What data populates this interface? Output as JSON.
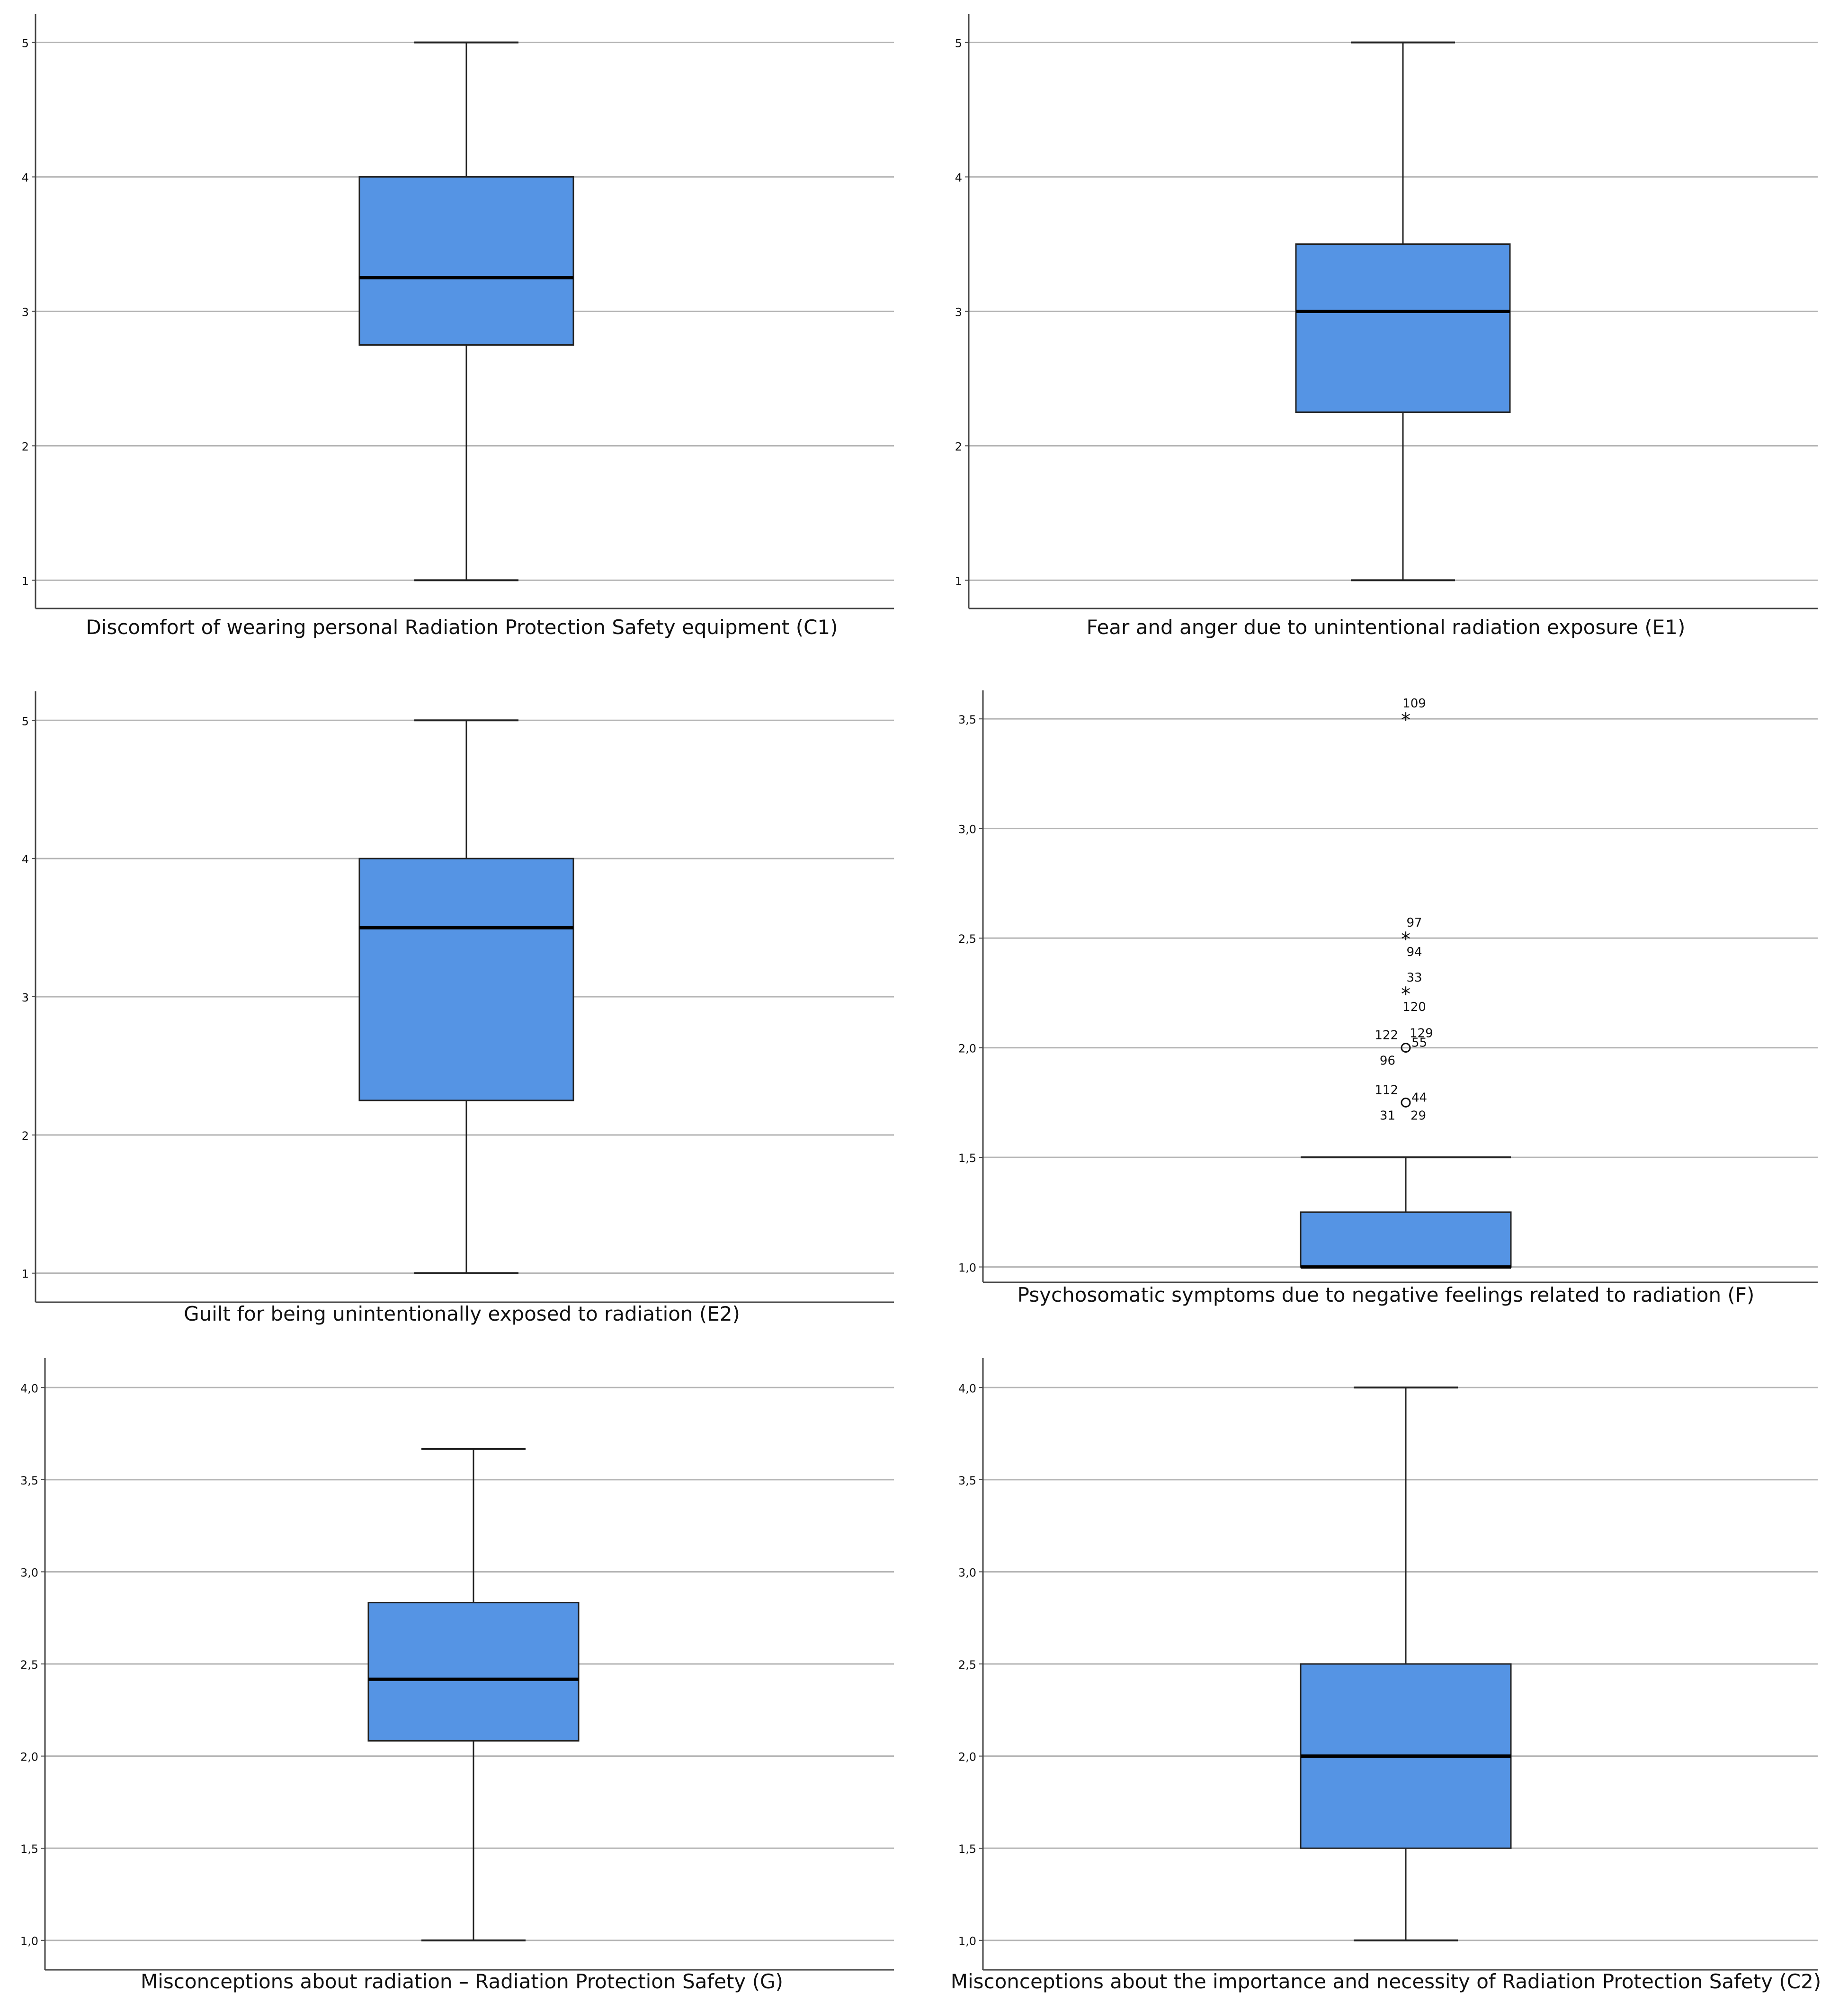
{
  "figure": {
    "colors": {
      "box_fill": "#5594e4",
      "box_edge": "#222222",
      "gridline": "#b4b4b4",
      "axis": "#444444",
      "median": "#000000",
      "text": "#111111"
    }
  },
  "chart_data": [
    {
      "type": "boxplot",
      "title": "",
      "xlabel": "Discomfort of wearing personal Radiation Protection Safety equipment (C1)",
      "ylabel": "",
      "ylim": [
        0.79,
        5.21
      ],
      "y_ticks": [
        1,
        2,
        3,
        4,
        5
      ],
      "y_tick_labels": [
        "1",
        "2",
        "3",
        "4",
        "5"
      ],
      "grid": true,
      "whisker_low": 1,
      "q1": 2.75,
      "median": 3.25,
      "q3": 4,
      "whisker_high": 5,
      "outliers": []
    },
    {
      "type": "boxplot",
      "title": "",
      "xlabel": "Fear and anger due to unintentional radiation exposure (E1)",
      "ylabel": "",
      "ylim": [
        0.79,
        5.21
      ],
      "y_ticks": [
        1,
        2,
        3,
        4,
        5
      ],
      "y_tick_labels": [
        "1",
        "2",
        "3",
        "4",
        "5"
      ],
      "grid": true,
      "whisker_low": 1,
      "q1": 2.25,
      "median": 3,
      "q3": 3.5,
      "whisker_high": 5,
      "outliers": []
    },
    {
      "type": "boxplot",
      "title": "",
      "xlabel": "Guilt for being unintentionally exposed to radiation (E2)",
      "ylabel": "",
      "ylim": [
        0.79,
        5.21
      ],
      "y_ticks": [
        1,
        2,
        3,
        4,
        5
      ],
      "y_tick_labels": [
        "1",
        "2",
        "3",
        "4",
        "5"
      ],
      "grid": true,
      "whisker_low": 1,
      "q1": 2.25,
      "median": 3.5,
      "q3": 4,
      "whisker_high": 5,
      "outliers": []
    },
    {
      "type": "boxplot",
      "title": "",
      "xlabel": "Psychosomatic symptoms due to negative feelings related to radiation (F)",
      "ylabel": "",
      "ylim": [
        0.93,
        3.63
      ],
      "y_ticks": [
        1.0,
        1.5,
        2.0,
        2.5,
        3.0,
        3.5
      ],
      "y_tick_labels": [
        "1,0",
        "1,5",
        "2,0",
        "2,5",
        "3,0",
        "3,5"
      ],
      "grid": true,
      "whisker_low": 1,
      "q1": 1,
      "median": 1,
      "q3": 1.25,
      "whisker_high": 1.5,
      "outliers": [
        {
          "value": 3.5,
          "marker": "*",
          "labels": [
            {
              "text": "109",
              "pos": "above"
            }
          ]
        },
        {
          "value": 2.5,
          "marker": "*",
          "labels": [
            {
              "text": "97",
              "pos": "above"
            },
            {
              "text": "94",
              "pos": "below"
            }
          ]
        },
        {
          "value": 2.25,
          "marker": "*",
          "labels": [
            {
              "text": "33",
              "pos": "above"
            },
            {
              "text": "120",
              "pos": "below"
            }
          ]
        },
        {
          "value": 2.0,
          "marker": "o",
          "labels": [
            {
              "text": "129",
              "pos": "above-right"
            },
            {
              "text": "122",
              "pos": "left"
            },
            {
              "text": "55",
              "pos": "right"
            },
            {
              "text": "96",
              "pos": "below-left"
            }
          ]
        },
        {
          "value": 1.75,
          "marker": "o",
          "labels": [
            {
              "text": "112",
              "pos": "left"
            },
            {
              "text": "44",
              "pos": "right"
            },
            {
              "text": "31",
              "pos": "below-left"
            },
            {
              "text": "29",
              "pos": "below-right"
            }
          ]
        }
      ]
    },
    {
      "type": "boxplot",
      "title": "",
      "xlabel": "Misconceptions about radiation – Radiation Protection Safety (G)",
      "ylabel": "",
      "ylim": [
        0.84,
        4.16
      ],
      "y_ticks": [
        1.0,
        1.5,
        2.0,
        2.5,
        3.0,
        3.5,
        4.0
      ],
      "y_tick_labels": [
        "1,0",
        "1,5",
        "2,0",
        "2,5",
        "3,0",
        "3,5",
        "4,0"
      ],
      "grid": true,
      "whisker_low": 1,
      "q1": 2.083,
      "median": 2.417,
      "q3": 2.833,
      "whisker_high": 3.667,
      "outliers": []
    },
    {
      "type": "boxplot",
      "title": "",
      "xlabel": "Misconceptions about the importance and necessity of Radiation Protection Safety (C2)",
      "ylabel": "",
      "ylim": [
        0.84,
        4.16
      ],
      "y_ticks": [
        1.0,
        1.5,
        2.0,
        2.5,
        3.0,
        3.5,
        4.0
      ],
      "y_tick_labels": [
        "1,0",
        "1,5",
        "2,0",
        "2,5",
        "3,0",
        "3,5",
        "4,0"
      ],
      "grid": true,
      "whisker_low": 1,
      "q1": 1.5,
      "median": 2,
      "q3": 2.5,
      "whisker_high": 4,
      "outliers": []
    }
  ]
}
